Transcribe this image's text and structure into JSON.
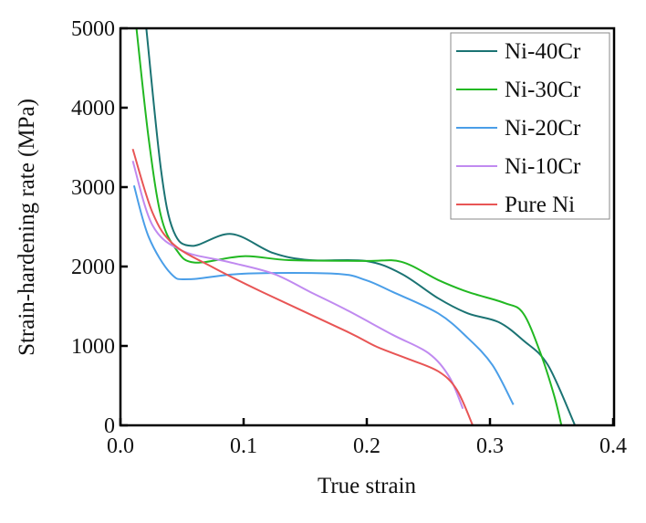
{
  "chart_data": {
    "type": "line",
    "title": "",
    "xlabel": "True strain",
    "ylabel": "Strain-hardening rate (MPa)",
    "xlim": [
      0.0,
      0.4
    ],
    "ylim": [
      0,
      5000
    ],
    "xticks": [
      "0.0",
      "0.1",
      "0.2",
      "0.3",
      "0.4"
    ],
    "xtick_values": [
      0.0,
      0.1,
      0.2,
      0.3,
      0.4
    ],
    "yticks": [
      "0",
      "1000",
      "2000",
      "3000",
      "4000",
      "5000"
    ],
    "ytick_values": [
      0,
      1000,
      2000,
      3000,
      4000,
      5000
    ],
    "grid": false,
    "legend_position": "top-right",
    "series": [
      {
        "name": "Ni-40Cr",
        "color": "#1b7373",
        "x": [
          0.021,
          0.033,
          0.043,
          0.058,
          0.09,
          0.124,
          0.154,
          0.199,
          0.228,
          0.258,
          0.282,
          0.307,
          0.327,
          0.347,
          0.369
        ],
        "y": [
          5000,
          3210,
          2450,
          2260,
          2410,
          2170,
          2080,
          2070,
          1910,
          1600,
          1410,
          1300,
          1070,
          760,
          0
        ]
      },
      {
        "name": "Ni-30Cr",
        "color": "#22b822",
        "x": [
          0.013,
          0.023,
          0.033,
          0.045,
          0.06,
          0.1,
          0.137,
          0.199,
          0.228,
          0.258,
          0.282,
          0.312,
          0.327,
          0.341,
          0.352,
          0.358
        ],
        "y": [
          5000,
          3600,
          2630,
          2220,
          2050,
          2130,
          2080,
          2070,
          2060,
          1830,
          1680,
          1540,
          1410,
          910,
          380,
          0
        ]
      },
      {
        "name": "Ni-20Cr",
        "color": "#4a9ee8",
        "x": [
          0.011,
          0.023,
          0.041,
          0.056,
          0.1,
          0.174,
          0.199,
          0.221,
          0.258,
          0.282,
          0.302,
          0.319
        ],
        "y": [
          3020,
          2370,
          1910,
          1840,
          1910,
          1910,
          1830,
          1680,
          1410,
          1100,
          760,
          260
        ]
      },
      {
        "name": "Ni-10Cr",
        "color": "#c08af0",
        "x": [
          0.01,
          0.026,
          0.05,
          0.087,
          0.124,
          0.154,
          0.184,
          0.221,
          0.25,
          0.267,
          0.278
        ],
        "y": [
          3330,
          2520,
          2200,
          2060,
          1910,
          1680,
          1450,
          1140,
          910,
          610,
          210
        ]
      },
      {
        "name": "Pure Ni",
        "color": "#e85555",
        "x": [
          0.01,
          0.026,
          0.043,
          0.075,
          0.115,
          0.184,
          0.208,
          0.233,
          0.258,
          0.273,
          0.286
        ],
        "y": [
          3480,
          2680,
          2280,
          1990,
          1680,
          1180,
          990,
          840,
          680,
          450,
          0
        ]
      }
    ]
  }
}
